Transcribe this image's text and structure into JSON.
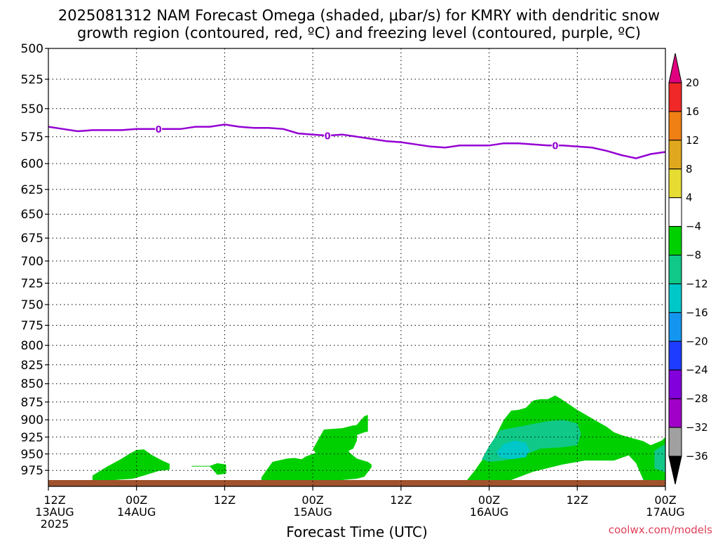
{
  "chart_data": {
    "type": "heatmap",
    "title": "2025081312 NAM Forecast Omega (shaded, μbar/s) for KMRY with dendritic snow",
    "subtitle": "growth region (contoured, red, ºC) and freezing level (contoured, purple, ºC)",
    "xlabel": "Forecast Time (UTC)",
    "credit": "coolwx.com/models",
    "x_ticks": [
      {
        "hour": 0,
        "lines": [
          "12Z",
          "13AUG",
          "2025"
        ]
      },
      {
        "hour": 12,
        "lines": [
          "00Z",
          "14AUG"
        ]
      },
      {
        "hour": 24,
        "lines": [
          "12Z"
        ]
      },
      {
        "hour": 36,
        "lines": [
          "00Z",
          "15AUG"
        ]
      },
      {
        "hour": 48,
        "lines": [
          "12Z"
        ]
      },
      {
        "hour": 60,
        "lines": [
          "00Z",
          "16AUG"
        ]
      },
      {
        "hour": 72,
        "lines": [
          "12Z"
        ]
      },
      {
        "hour": 84,
        "lines": [
          "00Z",
          "17AUG"
        ]
      }
    ],
    "xlim": [
      0,
      84
    ],
    "y_ticks": [
      500,
      525,
      550,
      575,
      600,
      625,
      650,
      675,
      700,
      725,
      750,
      775,
      800,
      825,
      850,
      875,
      900,
      925,
      950,
      975
    ],
    "ylim": [
      500,
      1000
    ],
    "y_scale": "log-pressure",
    "grid": true,
    "colorbar": {
      "labels": [
        "20",
        "16",
        "12",
        "8",
        "4",
        "−4",
        "−8",
        "−12",
        "−16",
        "−20",
        "−24",
        "−28",
        "−32",
        "−36"
      ],
      "colors": [
        "#e0007f",
        "#f02828",
        "#f07f14",
        "#e0a81e",
        "#e6dc32",
        "#ffffff",
        "#00d000",
        "#10c888",
        "#00c8c8",
        "#1496f0",
        "#1e3cff",
        "#8200dc",
        "#a000c8",
        "#a0a0a0",
        "#000000"
      ]
    },
    "freezing_level": {
      "label": "0",
      "color": "#9400d3",
      "hours": [
        0,
        2,
        4,
        6,
        8,
        10,
        12,
        14,
        16,
        18,
        20,
        22,
        24,
        26,
        28,
        30,
        32,
        34,
        36,
        38,
        40,
        42,
        44,
        46,
        48,
        50,
        52,
        54,
        56,
        58,
        60,
        62,
        64,
        66,
        68,
        70,
        72,
        74,
        76,
        78,
        80,
        82,
        84
      ],
      "pressure": [
        566,
        568,
        570,
        569,
        569,
        569,
        568,
        568,
        568,
        568,
        566,
        566,
        564,
        566,
        567,
        567,
        568,
        572,
        573,
        574,
        573,
        575,
        577,
        579,
        580,
        582,
        584,
        585,
        583,
        583,
        583,
        581,
        581,
        582,
        583,
        583,
        584,
        585,
        588,
        592,
        595,
        591,
        589
      ],
      "label_hours": [
        15,
        38,
        69
      ]
    },
    "omega_regions": [
      {
        "name": "-4 to -8",
        "color": "#00d000",
        "hours": [
          6,
          8,
          9,
          10,
          11,
          12,
          13,
          14,
          15.5,
          16.5,
          16.5,
          15,
          13,
          11.5,
          9,
          6
        ],
        "pressure": [
          983,
          969,
          963,
          957,
          950,
          944,
          943,
          951,
          960,
          965,
          974,
          976,
          983,
          988,
          990,
          990
        ]
      },
      {
        "name": "-4 to -8",
        "color": "#00d000",
        "hours": [
          19.5,
          22,
          23,
          24.2,
          24.2,
          23,
          22,
          19.5
        ],
        "pressure": [
          968,
          968,
          964,
          966,
          980,
          982,
          969,
          969
        ]
      },
      {
        "name": "-4 to -8",
        "color": "#00d000",
        "hours": [
          29,
          30.5,
          32.5,
          33.5,
          34.5,
          35,
          36,
          37,
          38,
          39,
          40,
          41,
          42,
          43,
          43.5,
          43.5,
          43,
          41.5,
          40.5,
          41,
          42,
          43.5,
          44,
          44,
          43,
          42,
          40,
          38,
          36,
          34,
          31,
          29
        ],
        "pressure": [
          986,
          962,
          957,
          956,
          958,
          954,
          950,
          946,
          937,
          928,
          920,
          912,
          907,
          895,
          893,
          917,
          918,
          924,
          937,
          948,
          957,
          962,
          966,
          970,
          985,
          988,
          990,
          990,
          990,
          990,
          990,
          990
        ]
      },
      {
        "name": "-4 to -8",
        "color": "#00d000",
        "hours": [
          36,
          37.5,
          40,
          41.5,
          42,
          42,
          41.5,
          40.5,
          39,
          38,
          37.5,
          37,
          36
        ],
        "pressure": [
          943,
          914,
          912,
          908,
          908,
          930,
          942,
          947,
          952,
          955,
          957,
          956,
          943
        ]
      },
      {
        "name": "-4 to -8",
        "color": "#00d000",
        "hours": [
          57,
          58,
          59,
          60,
          61,
          62,
          63,
          64,
          65,
          66,
          67,
          68,
          69,
          70,
          71,
          72,
          74,
          76,
          77,
          78,
          80,
          81,
          82,
          83.5,
          84,
          84,
          83,
          82,
          81,
          80,
          79,
          77,
          75,
          73,
          70,
          66,
          63,
          60,
          57
        ],
        "pressure": [
          990,
          976,
          960,
          943,
          921,
          900,
          887,
          886,
          883,
          873,
          871,
          871,
          866,
          872,
          879,
          886,
          898,
          910,
          918,
          922,
          928,
          931,
          937,
          930,
          925,
          990,
          990,
          990,
          990,
          964,
          952,
          960,
          960,
          960,
          966,
          977,
          990,
          990,
          990
        ]
      },
      {
        "name": "-8 to -12",
        "color": "#10c888",
        "hours": [
          59,
          60,
          61.5,
          64,
          66,
          68,
          70,
          72,
          72.5,
          72,
          70,
          67,
          64,
          62,
          60,
          59
        ],
        "pressure": [
          958,
          938,
          915,
          910,
          906,
          902,
          900,
          905,
          920,
          937,
          940,
          942,
          955,
          960,
          962,
          958
        ]
      },
      {
        "name": "-8 to -12",
        "color": "#10c888",
        "hours": [
          82.5,
          84,
          84,
          82.5
        ],
        "pressure": [
          945,
          935,
          978,
          972
        ]
      },
      {
        "name": "-12 to -16",
        "color": "#00c8c8",
        "hours": [
          61,
          62,
          63.5,
          65,
          65.5,
          65,
          63,
          61.5,
          61
        ],
        "pressure": [
          948,
          935,
          930,
          933,
          945,
          955,
          958,
          955,
          948
        ]
      }
    ],
    "terrain": {
      "color": "#a0522d",
      "top_pressure": 990
    }
  }
}
